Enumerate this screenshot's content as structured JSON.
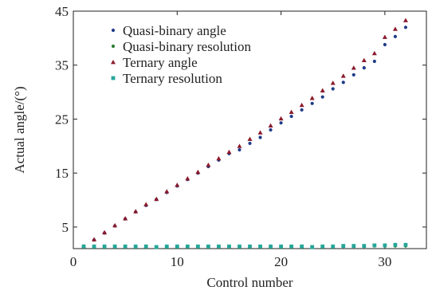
{
  "chart_data": {
    "type": "scatter",
    "title": "",
    "xlabel": "Control number",
    "ylabel": "Actual angle/(°)",
    "xlim": [
      0,
      34
    ],
    "ylim": [
      1,
      45
    ],
    "x_ticks": [
      0,
      10,
      20,
      30
    ],
    "y_ticks": [
      5,
      15,
      25,
      35,
      45
    ],
    "grid": false,
    "legend_position": "top-left",
    "x": [
      1,
      2,
      3,
      4,
      5,
      6,
      7,
      8,
      9,
      10,
      11,
      12,
      13,
      14,
      15,
      16,
      17,
      18,
      19,
      20,
      21,
      22,
      23,
      24,
      25,
      26,
      27,
      28,
      29,
      30,
      31,
      32
    ],
    "series": [
      {
        "name": "Quasi-binary angle",
        "marker": "circle",
        "color": "#1f3c88",
        "values": [
          1.3,
          2.6,
          3.9,
          5.2,
          6.5,
          7.8,
          9.0,
          10.1,
          11.4,
          12.6,
          13.8,
          15.0,
          16.2,
          17.4,
          18.6,
          19.3,
          20.5,
          21.6,
          23.0,
          24.3,
          25.5,
          26.7,
          27.9,
          29.1,
          30.6,
          31.8,
          33.2,
          34.5,
          35.7,
          38.8,
          40.3,
          42.0
        ]
      },
      {
        "name": "Quasi-binary resolution",
        "marker": "circle",
        "color": "#2e7d32",
        "values": [
          1.3,
          1.3,
          1.3,
          1.3,
          1.3,
          1.3,
          1.3,
          1.2,
          1.3,
          1.3,
          1.3,
          1.3,
          1.3,
          1.3,
          1.3,
          1.3,
          1.3,
          1.3,
          1.3,
          1.3,
          1.3,
          1.3,
          1.2,
          1.3,
          1.3,
          1.4,
          1.4,
          1.4,
          1.5,
          1.5,
          1.5,
          1.5
        ]
      },
      {
        "name": "Ternary angle",
        "marker": "triangle",
        "color": "#8b1a2b",
        "values": [
          1.4,
          2.7,
          4.0,
          5.3,
          6.6,
          7.9,
          9.2,
          10.2,
          11.6,
          12.8,
          14.0,
          15.2,
          16.5,
          17.7,
          18.9,
          20.0,
          21.3,
          22.5,
          23.8,
          25.1,
          26.3,
          27.6,
          28.9,
          30.3,
          31.7,
          33.0,
          34.5,
          35.9,
          37.2,
          40.2,
          41.7,
          43.3
        ]
      },
      {
        "name": "Ternary resolution",
        "marker": "square",
        "color": "#26a69a",
        "values": [
          1.4,
          1.4,
          1.4,
          1.4,
          1.4,
          1.4,
          1.4,
          1.3,
          1.4,
          1.4,
          1.4,
          1.4,
          1.4,
          1.4,
          1.4,
          1.4,
          1.4,
          1.4,
          1.4,
          1.4,
          1.4,
          1.4,
          1.3,
          1.4,
          1.4,
          1.5,
          1.5,
          1.5,
          1.6,
          1.6,
          1.7,
          1.7
        ]
      }
    ]
  }
}
